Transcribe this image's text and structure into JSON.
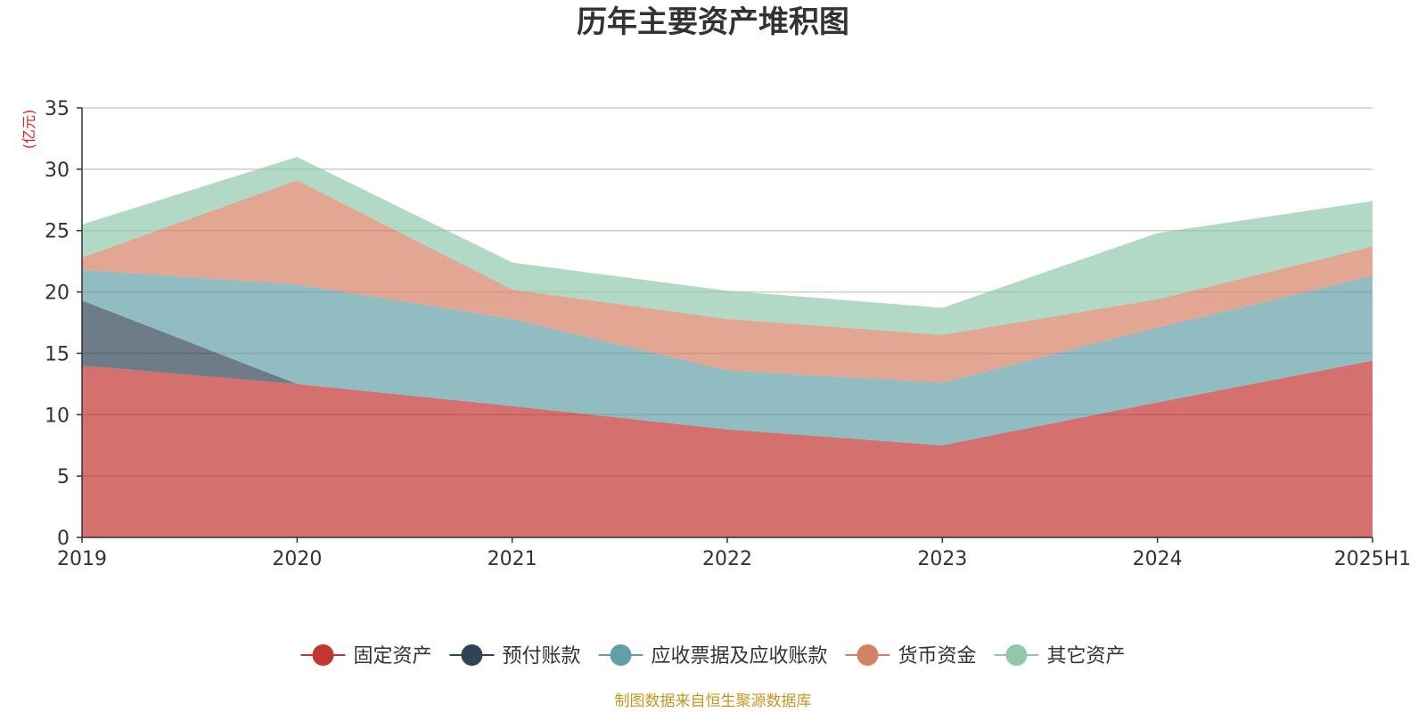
{
  "chart_data": {
    "type": "area",
    "stacked": true,
    "title": "历年主要资产堆积图",
    "unit_label": "(亿元)",
    "xlabel": "",
    "ylabel": "(亿元)",
    "categories": [
      "2019",
      "2020",
      "2021",
      "2022",
      "2023",
      "2024",
      "2025H1"
    ],
    "ylim": [
      0,
      35
    ],
    "yticks": [
      0,
      5,
      10,
      15,
      20,
      25,
      30,
      35
    ],
    "grid": true,
    "legend_position": "bottom",
    "series": [
      {
        "name": "固定资产",
        "color": "#c23531",
        "values": [
          14.0,
          12.5,
          10.7,
          8.8,
          7.5,
          11.0,
          14.4
        ]
      },
      {
        "name": "预付账款",
        "color": "#2f4554",
        "values": [
          5.3,
          0.0,
          0.0,
          0.0,
          0.0,
          0.0,
          0.0
        ]
      },
      {
        "name": "应收票据及应收账款",
        "color": "#61a0a8",
        "values": [
          2.5,
          8.1,
          7.1,
          4.8,
          5.1,
          6.1,
          6.9
        ]
      },
      {
        "name": "货币资金",
        "color": "#d48265",
        "values": [
          1.0,
          8.5,
          2.4,
          4.2,
          3.9,
          2.3,
          2.4
        ]
      },
      {
        "name": "其它资产",
        "color": "#91c7ae",
        "values": [
          2.7,
          1.9,
          2.2,
          2.3,
          2.2,
          5.4,
          3.7
        ]
      }
    ],
    "source": {
      "text": "制图数据来自恒生聚源数据库",
      "color": "#c8961e"
    }
  }
}
